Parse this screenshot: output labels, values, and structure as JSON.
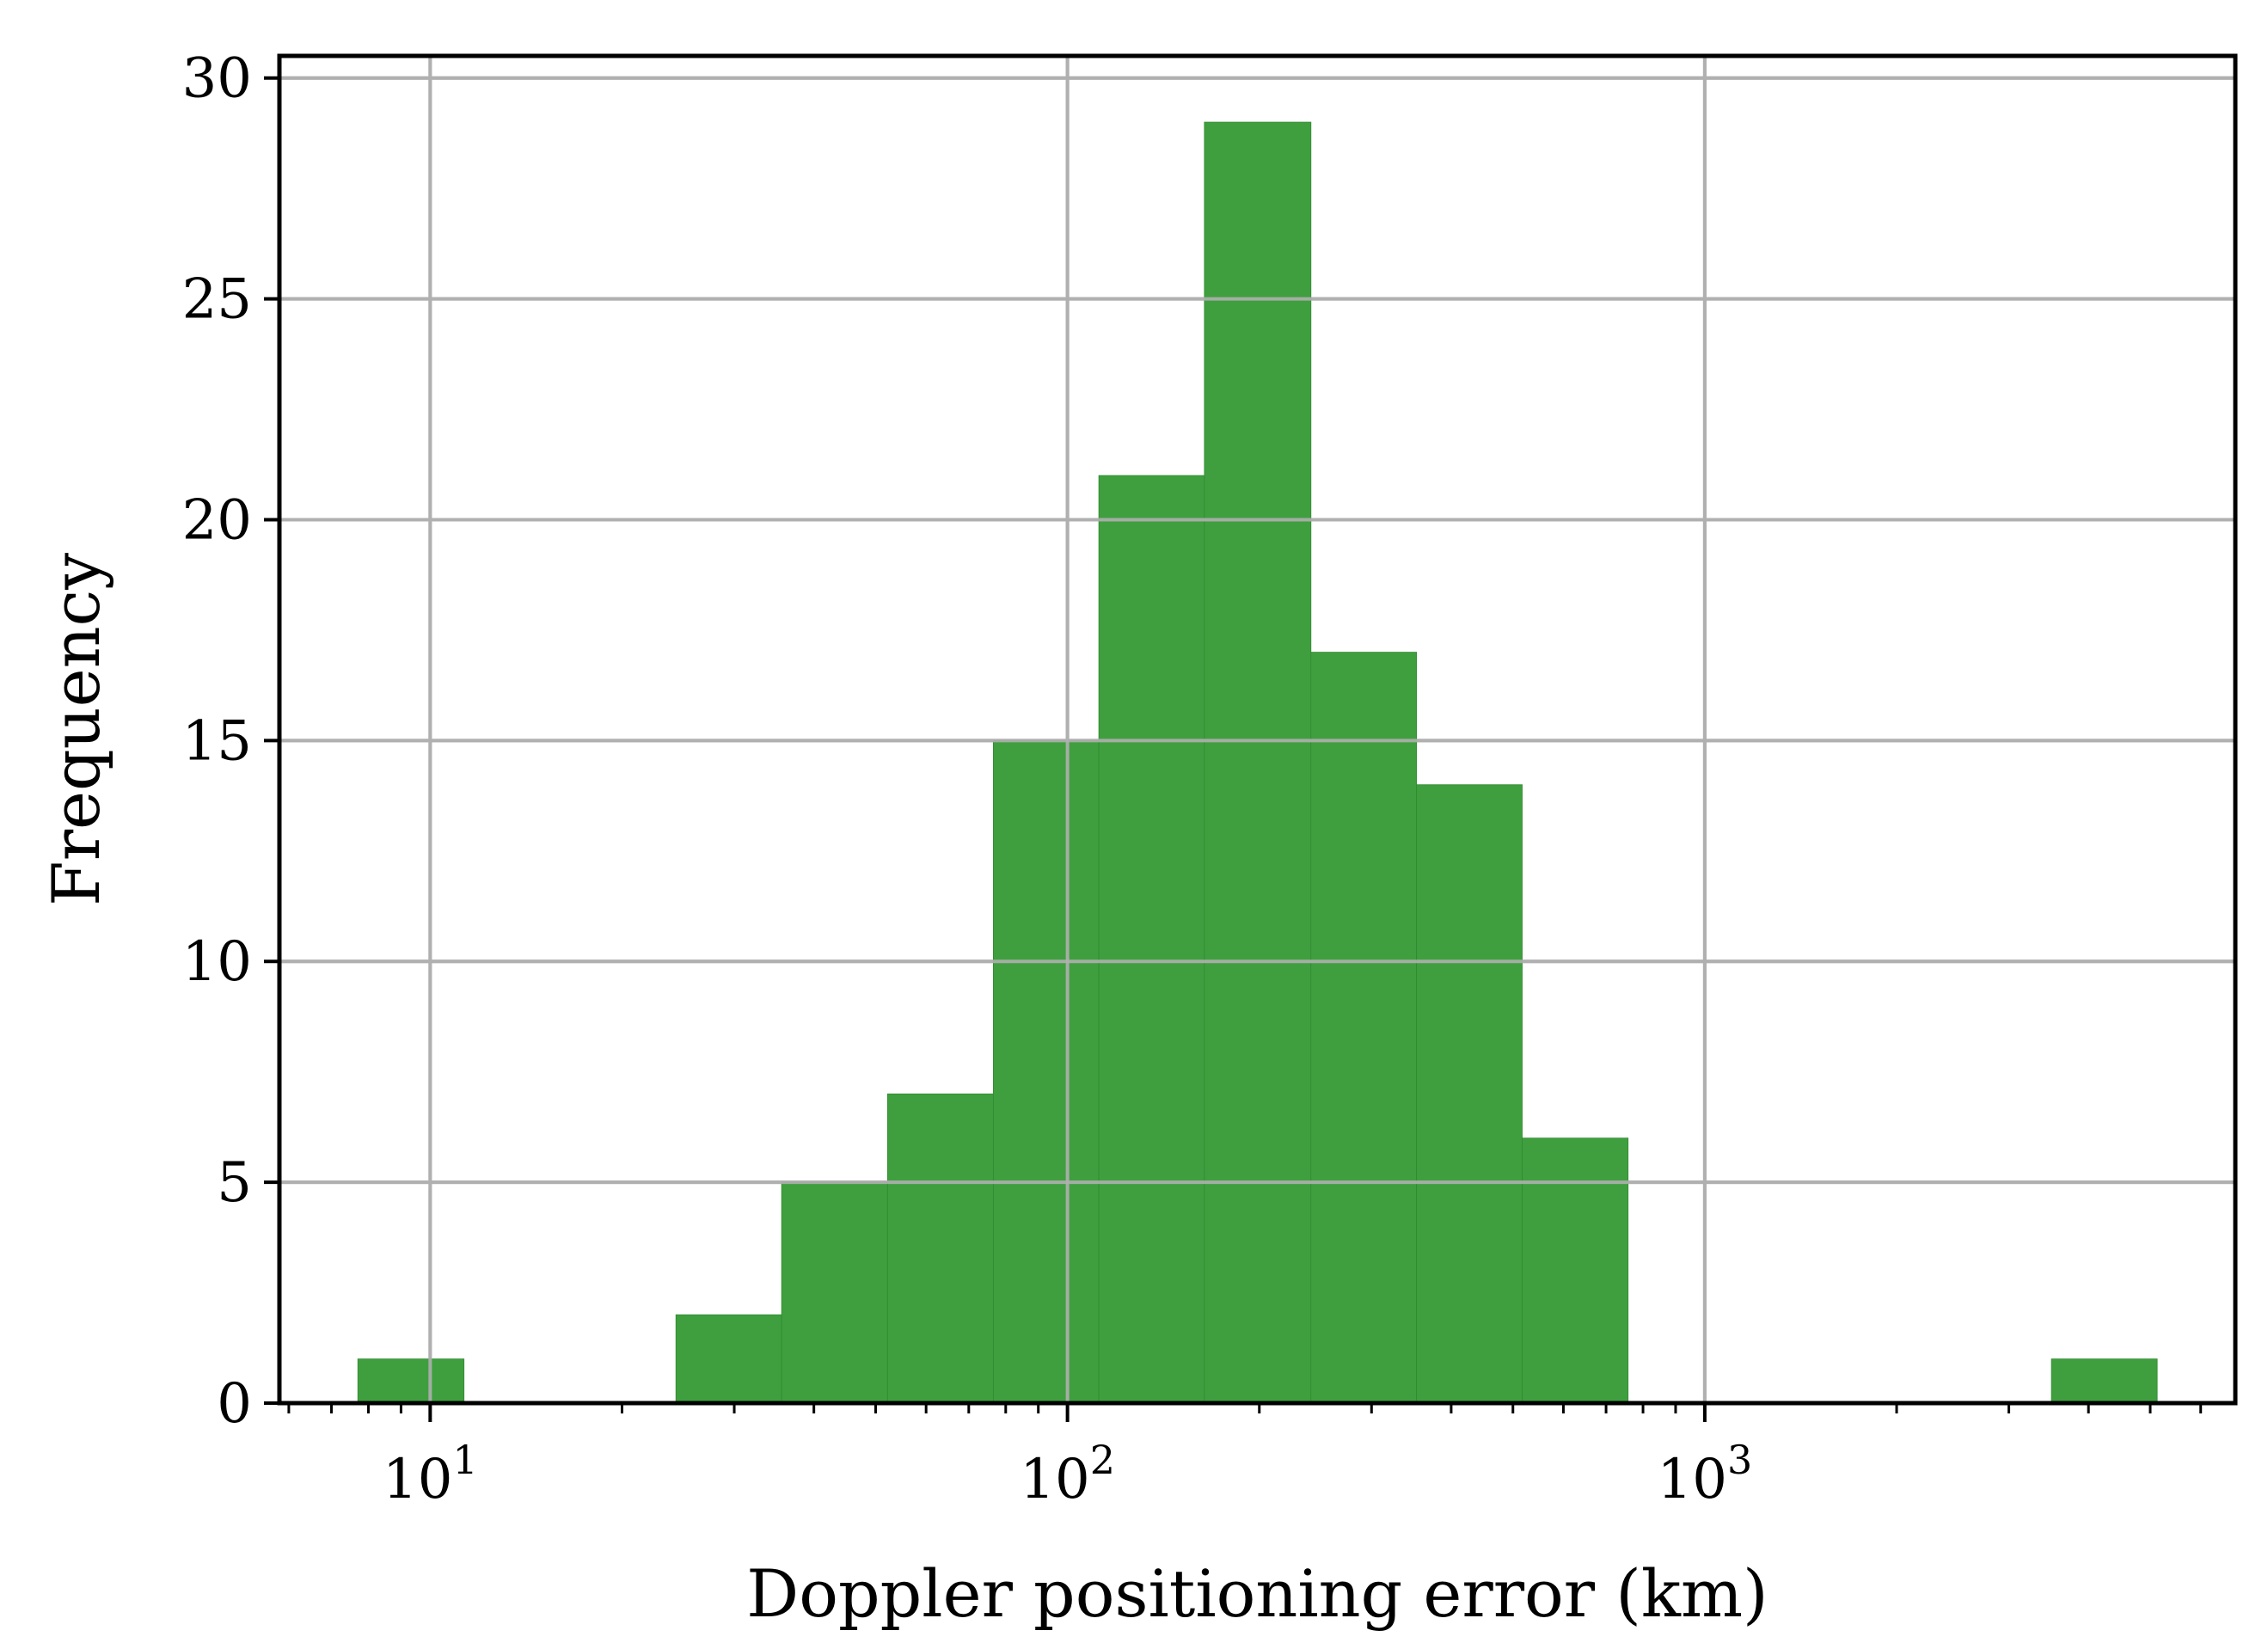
{
  "chart_data": {
    "type": "bar",
    "title": "",
    "xlabel": "Doppler positioning error (km)",
    "ylabel": "Frequency",
    "x_scale": "log",
    "xlim": [
      5.8,
      6800
    ],
    "ylim": [
      0,
      30.5
    ],
    "grid": true,
    "bar_color": "#3f9f3f",
    "x_ticks": [
      {
        "value": 10,
        "base": "10",
        "exp": "1"
      },
      {
        "value": 100,
        "base": "10",
        "exp": "2"
      },
      {
        "value": 1000,
        "base": "10",
        "exp": "3"
      }
    ],
    "y_ticks": [
      0,
      5,
      10,
      15,
      20,
      25,
      30
    ],
    "bins": [
      {
        "x0": 7.7,
        "x1": 11.3,
        "count": 1
      },
      {
        "x0": 11.3,
        "x1": 16.6,
        "count": 0
      },
      {
        "x0": 16.6,
        "x1": 24.3,
        "count": 0
      },
      {
        "x0": 24.3,
        "x1": 35.6,
        "count": 2
      },
      {
        "x0": 35.6,
        "x1": 52.2,
        "count": 5
      },
      {
        "x0": 52.2,
        "x1": 76.5,
        "count": 7
      },
      {
        "x0": 76.5,
        "x1": 112,
        "count": 15
      },
      {
        "x0": 112,
        "x1": 164,
        "count": 21
      },
      {
        "x0": 164,
        "x1": 241,
        "count": 29
      },
      {
        "x0": 241,
        "x1": 353,
        "count": 17
      },
      {
        "x0": 353,
        "x1": 517,
        "count": 14
      },
      {
        "x0": 517,
        "x1": 758,
        "count": 6
      },
      {
        "x0": 758,
        "x1": 1111,
        "count": 0
      },
      {
        "x0": 1111,
        "x1": 1628,
        "count": 0
      },
      {
        "x0": 1628,
        "x1": 2387,
        "count": 0
      },
      {
        "x0": 2387,
        "x1": 3499,
        "count": 0
      },
      {
        "x0": 3499,
        "x1": 5128,
        "count": 1
      }
    ]
  }
}
